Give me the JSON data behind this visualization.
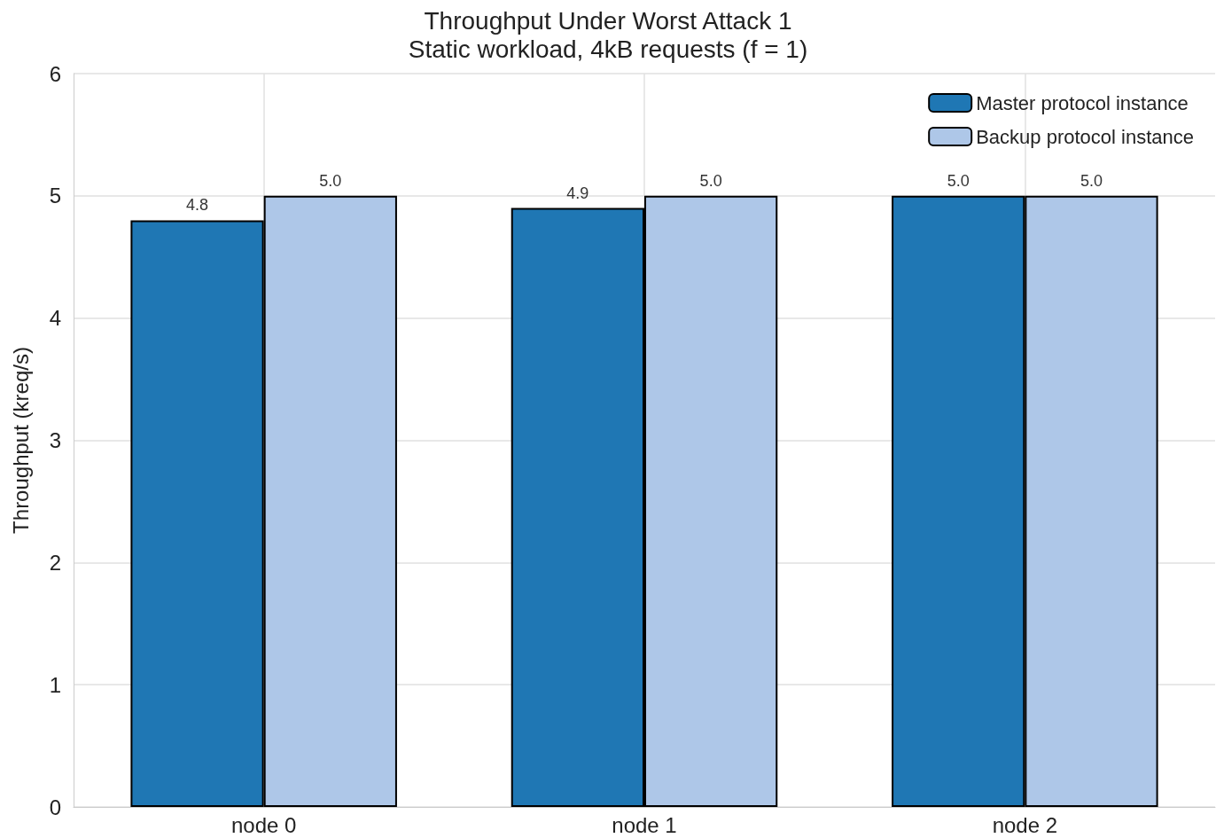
{
  "chart_data": {
    "type": "bar",
    "title": "Throughput Under Worst Attack 1",
    "subtitle": "Static workload, 4kB requests (f = 1)",
    "ylabel": "Throughput (kreq/s)",
    "categories": [
      "node 0",
      "node 1",
      "node 2"
    ],
    "series": [
      {
        "name": "Master protocol instance",
        "color": "#1f77b4",
        "values": [
          4.8,
          4.9,
          5.0
        ],
        "value_labels": [
          "4.8",
          "4.9",
          "5.0"
        ]
      },
      {
        "name": "Backup protocol instance",
        "color": "#aec7e8",
        "values": [
          5.0,
          5.0,
          5.0
        ],
        "value_labels": [
          "5.0",
          "5.0",
          "5.0"
        ]
      }
    ],
    "ylim": [
      0,
      6
    ],
    "yticks": [
      0,
      1,
      2,
      3,
      4,
      5,
      6
    ],
    "grid": true,
    "legend": "top right"
  }
}
